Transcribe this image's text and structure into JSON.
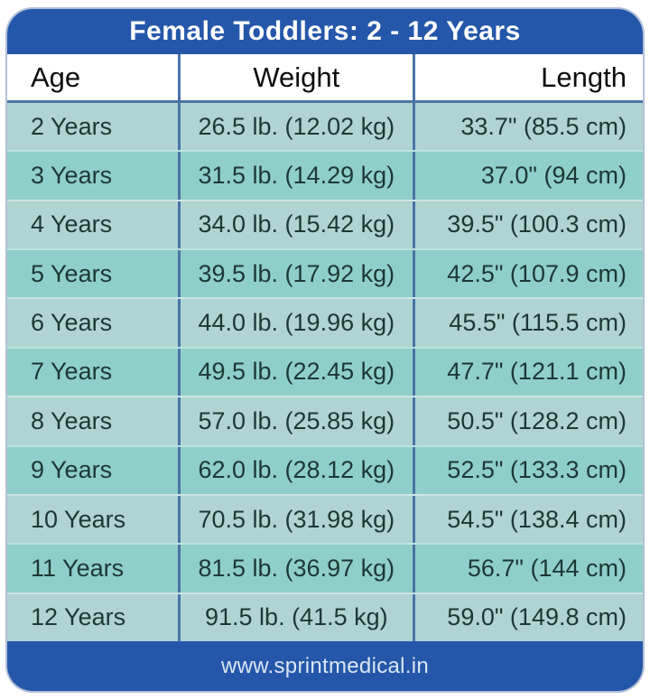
{
  "card": {
    "title": "Female Toddlers: 2 - 12 Years",
    "footer_url": "www.sprintmedical.in"
  },
  "colors": {
    "header_blue": "#2457a9",
    "divider_blue": "#4a74a8",
    "row_light": "#afd4d2",
    "row_dark": "#8fcfc9",
    "row_text": "#1c3836",
    "footer_text": "#dbe6f3"
  },
  "chart_data": {
    "type": "table",
    "title": "Female Toddlers: 2 - 12 Years",
    "columns": [
      "Age",
      "Weight",
      "Length"
    ],
    "rows": [
      [
        "2 Years",
        "26.5 lb. (12.02 kg)",
        "33.7\" (85.5 cm)"
      ],
      [
        "3 Years",
        "31.5 lb. (14.29 kg)",
        "37.0\" (94 cm)"
      ],
      [
        "4 Years",
        "34.0 lb. (15.42 kg)",
        "39.5\" (100.3 cm)"
      ],
      [
        "5 Years",
        "39.5 lb. (17.92 kg)",
        "42.5\" (107.9 cm)"
      ],
      [
        "6 Years",
        "44.0 lb. (19.96 kg)",
        "45.5\" (115.5 cm)"
      ],
      [
        "7 Years",
        "49.5 lb. (22.45 kg)",
        "47.7\" (121.1 cm)"
      ],
      [
        "8 Years",
        "57.0 lb. (25.85 kg)",
        "50.5\" (128.2 cm)"
      ],
      [
        "9 Years",
        "62.0 lb. (28.12 kg)",
        "52.5\" (133.3 cm)"
      ],
      [
        "10 Years",
        "70.5 lb. (31.98 kg)",
        "54.5\" (138.4 cm)"
      ],
      [
        "11 Years",
        "81.5 lb. (36.97 kg)",
        "56.7\" (144 cm)"
      ],
      [
        "12 Years",
        "91.5 lb. (41.5 kg)",
        "59.0\" (149.8 cm)"
      ]
    ]
  }
}
